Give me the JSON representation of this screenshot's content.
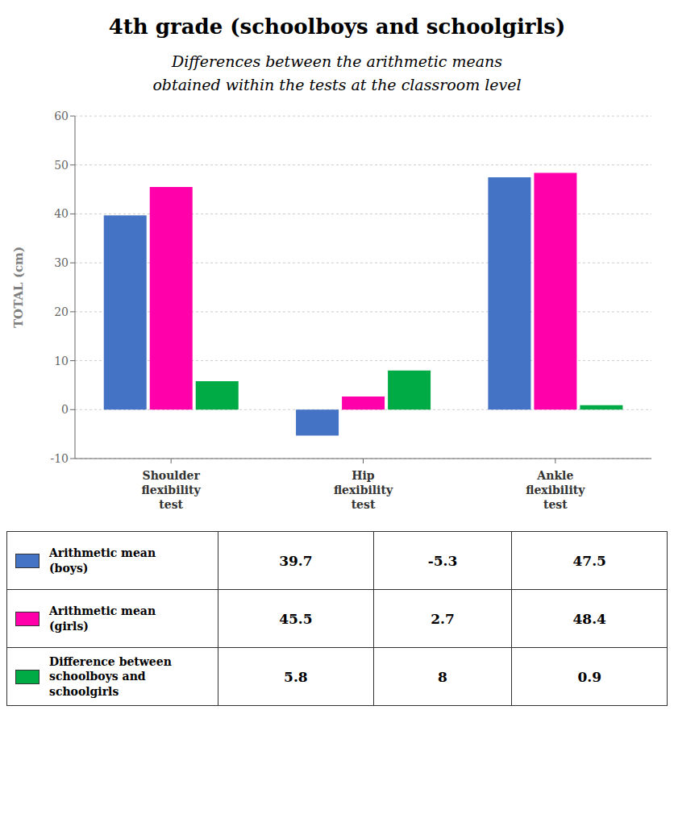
{
  "chart_data": {
    "type": "bar",
    "title": "4th grade (schoolboys and schoolgirls)",
    "subtitle": "Differences between the arithmetic means\nobtained within the tests at the classroom level",
    "categories": [
      "Shoulder\nflexibility\ntest",
      "Hip\nflexibility\ntest",
      "Ankle\nflexibility\ntest"
    ],
    "series": [
      {
        "name": "Arithmetic mean\n(boys)",
        "color": "#4472C4",
        "values": [
          39.7,
          -5.3,
          47.5
        ]
      },
      {
        "name": "Arithmetic mean\n(girls)",
        "color": "#FF00AA",
        "values": [
          45.5,
          2.7,
          48.4
        ]
      },
      {
        "name": "Difference between\nschoolboys and\nschoolgirls",
        "color": "#00AA44",
        "values": [
          5.8,
          8,
          0.9
        ]
      }
    ],
    "ylabel": "TOTAL (cm)",
    "ylim": [
      -10,
      60
    ],
    "yticks": [
      -10,
      0,
      10,
      20,
      30,
      40,
      50,
      60
    ],
    "grid": true
  }
}
